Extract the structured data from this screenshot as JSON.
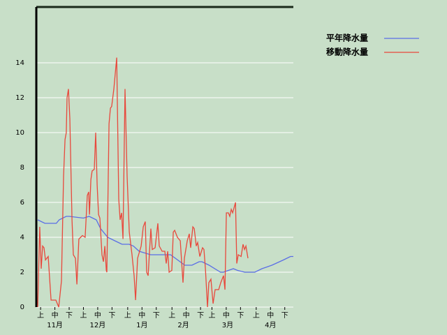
{
  "chart_data": {
    "type": "line",
    "xlim": [
      0,
      180
    ],
    "ylim": [
      0,
      17.2
    ],
    "yticks": [
      0,
      2,
      4,
      6,
      8,
      10,
      12,
      14
    ],
    "xticks": [
      {
        "value": 3,
        "label": "上"
      },
      {
        "value": 13,
        "label": "中"
      },
      {
        "value": 23,
        "label": "下"
      },
      {
        "value": 33,
        "label": "上"
      },
      {
        "value": 43,
        "label": "中"
      },
      {
        "value": 53,
        "label": "下"
      },
      {
        "value": 64,
        "label": "上"
      },
      {
        "value": 74,
        "label": "中"
      },
      {
        "value": 84,
        "label": "下"
      },
      {
        "value": 95,
        "label": "上"
      },
      {
        "value": 105,
        "label": "中"
      },
      {
        "value": 115,
        "label": "下"
      },
      {
        "value": 123,
        "label": "上"
      },
      {
        "value": 133,
        "label": "中"
      },
      {
        "value": 143,
        "label": "下"
      },
      {
        "value": 154,
        "label": "上"
      },
      {
        "value": 164,
        "label": "中"
      },
      {
        "value": 174,
        "label": "下"
      }
    ],
    "month_ticks": [
      {
        "value": 13,
        "label": "11月"
      },
      {
        "value": 43,
        "label": "12月"
      },
      {
        "value": 74,
        "label": "1月"
      },
      {
        "value": 103,
        "label": "2月"
      },
      {
        "value": 134,
        "label": "3月"
      },
      {
        "value": 164,
        "label": "4月"
      }
    ],
    "grid": true,
    "series": [
      {
        "name": "平年降水量",
        "color": "#5a6ee6",
        "x": [
          1,
          6,
          14,
          16,
          21,
          23,
          33,
          37,
          42,
          45,
          50,
          55,
          60,
          65,
          68,
          72,
          80,
          94,
          99,
          104,
          109,
          114,
          116,
          121,
          129,
          131,
          138,
          141,
          146,
          153,
          158,
          165,
          173,
          178,
          180
        ],
        "values": [
          5.0,
          4.8,
          4.8,
          5.0,
          5.2,
          5.2,
          5.1,
          5.2,
          5.0,
          4.5,
          4.0,
          3.8,
          3.6,
          3.6,
          3.5,
          3.2,
          3.0,
          3.0,
          2.7,
          2.4,
          2.4,
          2.6,
          2.6,
          2.4,
          2.0,
          2.0,
          2.2,
          2.1,
          2.0,
          2.0,
          2.2,
          2.4,
          2.7,
          2.9,
          2.9
        ]
      },
      {
        "name": "移動降水量",
        "color": "#e8483c",
        "x": [
          1.0,
          2.4,
          3.4,
          4.4,
          5.4,
          6.4,
          8.3,
          10.3,
          13.7,
          15.7,
          17.6,
          19.1,
          20.1,
          21.0,
          21.5,
          22.5,
          23.5,
          25.0,
          25.9,
          27.4,
          28.4,
          29.8,
          32.3,
          34.2,
          35.7,
          36.7,
          37.2,
          38.2,
          39.1,
          40.6,
          41.6,
          42.6,
          43.6,
          44.5,
          46.0,
          47.0,
          48.0,
          49.0,
          49.4,
          50.9,
          51.9,
          52.8,
          54.3,
          56.3,
          57.7,
          58.7,
          59.7,
          60.7,
          62.1,
          63.6,
          65.1,
          67.0,
          68.5,
          69.5,
          70.9,
          73.4,
          74.9,
          76.3,
          77.3,
          78.3,
          79.3,
          80.2,
          81.2,
          83.2,
          85.1,
          86.1,
          88.1,
          90.0,
          91.0,
          92.0,
          93.0,
          94.9,
          95.9,
          96.9,
          98.8,
          100.8,
          102.7,
          103.7,
          105.7,
          107.1,
          108.1,
          109.6,
          110.6,
          112.0,
          113.0,
          114.5,
          116.4,
          117.4,
          118.4,
          119.9,
          120.8,
          122.3,
          123.8,
          125.2,
          127.7,
          129.2,
          131.1,
          132.1,
          133.1,
          134.5,
          135.5,
          136.5,
          137.5,
          139.5,
          140.4,
          141.4,
          143.4,
          144.8,
          145.8,
          146.8,
          148.2
        ],
        "values": [
          0,
          4.6,
          2.2,
          3.5,
          3.4,
          2.7,
          2.9,
          0.4,
          0.4,
          0,
          1.5,
          7.5,
          9.6,
          10,
          12,
          12.5,
          10.8,
          5,
          3,
          2.8,
          1.3,
          3.9,
          4.1,
          4.0,
          6.4,
          6.6,
          5.3,
          7.3,
          7.8,
          7.9,
          10,
          7,
          5.3,
          5.1,
          3,
          2.6,
          3.5,
          2.1,
          2.0,
          10.5,
          11.4,
          11.5,
          12.5,
          14.3,
          6.2,
          5,
          5.4,
          3.9,
          12.5,
          7.5,
          4.3,
          3,
          1.8,
          0.4,
          2.8,
          3.5,
          4.6,
          4.9,
          2,
          1.8,
          3.2,
          4.5,
          3.3,
          3.4,
          4.8,
          3.5,
          3.2,
          3.2,
          2.5,
          3.2,
          2.0,
          2.1,
          4.3,
          4.4,
          4.0,
          3.8,
          1.4,
          2.8,
          3.8,
          4.2,
          3.4,
          4.6,
          4.5,
          3.5,
          3.7,
          2.9,
          3.4,
          3.3,
          2.2,
          0,
          1.4,
          1.6,
          0.2,
          1.0,
          1.0,
          1.4,
          1.8,
          1.0,
          5.4,
          5.4,
          5.2,
          5.6,
          5.4,
          6,
          2.5,
          3,
          2.9,
          3.6,
          3.3,
          3.5,
          2.8
        ]
      }
    ]
  }
}
